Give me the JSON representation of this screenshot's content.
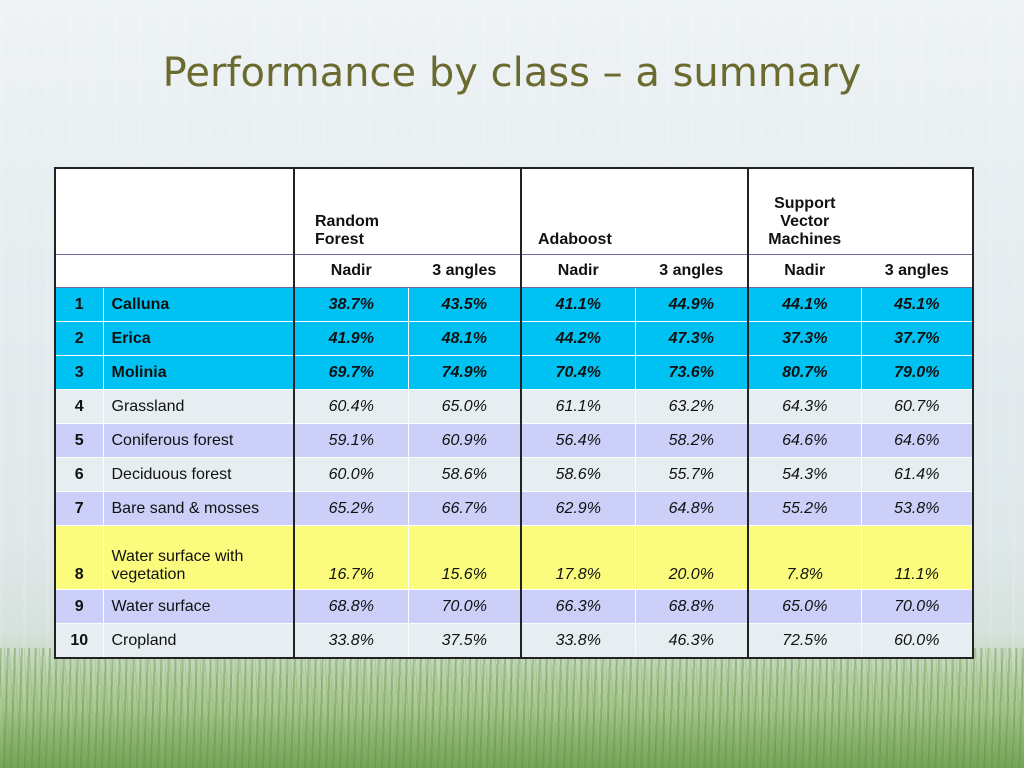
{
  "title": "Performance by class – a summary",
  "table": {
    "groups": [
      "Random\nForest",
      "Adaboost",
      "Support\nVector\nMachines"
    ],
    "subheaders": [
      "Nadir",
      "3 angles",
      "Nadir",
      "3 angles",
      "Nadir",
      "3 angles"
    ],
    "rows": [
      {
        "id": "1",
        "name": "Calluna",
        "values": [
          "38.7%",
          "43.5%",
          "41.1%",
          "44.9%",
          "44.1%",
          "45.1%"
        ]
      },
      {
        "id": "2",
        "name": "Erica",
        "values": [
          "41.9%",
          "48.1%",
          "44.2%",
          "47.3%",
          "37.3%",
          "37.7%"
        ]
      },
      {
        "id": "3",
        "name": "Molinia",
        "values": [
          "69.7%",
          "74.9%",
          "70.4%",
          "73.6%",
          "80.7%",
          "79.0%"
        ]
      },
      {
        "id": "4",
        "name": "Grassland",
        "values": [
          "60.4%",
          "65.0%",
          "61.1%",
          "63.2%",
          "64.3%",
          "60.7%"
        ]
      },
      {
        "id": "5",
        "name": "Coniferous forest",
        "values": [
          "59.1%",
          "60.9%",
          "56.4%",
          "58.2%",
          "64.6%",
          "64.6%"
        ]
      },
      {
        "id": "6",
        "name": "Deciduous forest",
        "values": [
          "60.0%",
          "58.6%",
          "58.6%",
          "55.7%",
          "54.3%",
          "61.4%"
        ]
      },
      {
        "id": "7",
        "name": "Bare sand & mosses",
        "values": [
          "65.2%",
          "66.7%",
          "62.9%",
          "64.8%",
          "55.2%",
          "53.8%"
        ]
      },
      {
        "id": "8",
        "name": "Water surface with vegetation",
        "values": [
          "16.7%",
          "15.6%",
          "17.8%",
          "20.0%",
          "7.8%",
          "11.1%"
        ]
      },
      {
        "id": "9",
        "name": "Water surface",
        "values": [
          "68.8%",
          "70.0%",
          "66.3%",
          "68.8%",
          "65.0%",
          "70.0%"
        ]
      },
      {
        "id": "10",
        "name": "Cropland",
        "values": [
          "33.8%",
          "37.5%",
          "33.8%",
          "46.3%",
          "72.5%",
          "60.0%"
        ]
      }
    ]
  }
}
